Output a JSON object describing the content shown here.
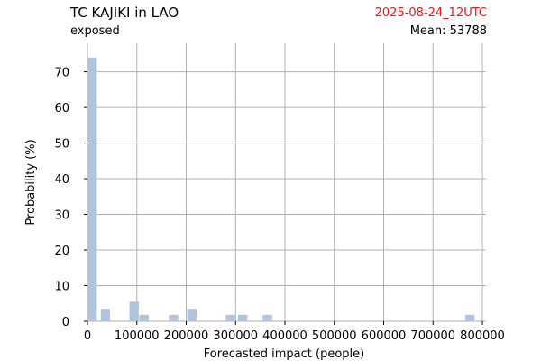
{
  "header": {
    "title": "TC KAJIKI in LAO",
    "subtitle": "exposed",
    "date": "2025-08-24_12UTC",
    "mean_text": "Mean: 53788"
  },
  "colors": {
    "bar": "#b0c4de",
    "grid": "#b0b0b0",
    "date": "#e8191b"
  },
  "chart_data": {
    "type": "bar",
    "title": "TC KAJIKI in LAO",
    "xlabel": "Forecasted impact (people)",
    "ylabel": "Probability (%)",
    "xlim": [
      0,
      800000
    ],
    "ylim": [
      0,
      78
    ],
    "xticks": [
      0,
      100000,
      200000,
      300000,
      400000,
      500000,
      600000,
      700000,
      800000
    ],
    "yticks": [
      0,
      10,
      20,
      30,
      40,
      50,
      60,
      70
    ],
    "grid": true,
    "bin_width": 19000,
    "bins": [
      {
        "x": 0,
        "value": 74
      },
      {
        "x": 27000,
        "value": 3.5
      },
      {
        "x": 85000,
        "value": 5.5
      },
      {
        "x": 105000,
        "value": 1.8
      },
      {
        "x": 165000,
        "value": 1.8
      },
      {
        "x": 202000,
        "value": 3.5
      },
      {
        "x": 280000,
        "value": 1.8
      },
      {
        "x": 305000,
        "value": 1.8
      },
      {
        "x": 355000,
        "value": 1.8
      },
      {
        "x": 765000,
        "value": 1.8
      }
    ]
  }
}
